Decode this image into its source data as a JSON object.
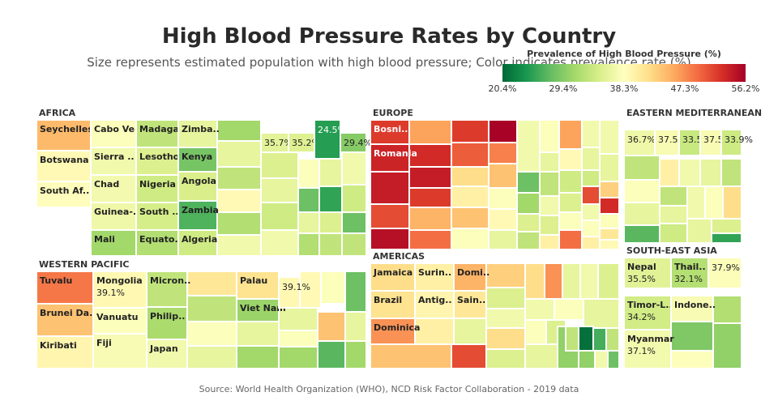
{
  "title": "High Blood Pressure Rates by Country",
  "subtitle": "Size represents estimated population with high blood pressure; Color indicates prevalence rate (%)",
  "source": "Source: World Health Organization (WHO), NCD Risk Factor Collaboration - 2019 data",
  "colorbar": {
    "title": "Prevalence of High Blood Pressure (%)",
    "min": 20.4,
    "max": 56.2,
    "ticks": [
      "20.4%",
      "29.4%",
      "38.3%",
      "47.3%",
      "56.2%"
    ],
    "colors": [
      "#006837",
      "#1a9850",
      "#66bd63",
      "#a6d96a",
      "#d9ef8b",
      "#ffffbf",
      "#fee08b",
      "#fdae61",
      "#f46d43",
      "#d73027",
      "#a50026"
    ]
  },
  "chart_data": {
    "type": "treemap",
    "value_label": "Prevalence of High Blood Pressure (%)",
    "regions": [
      {
        "name": "AFRICA",
        "countries": [
          {
            "name": "Seychelles",
            "label": "Seychelles",
            "value": 44.6
          },
          {
            "name": "Botswana",
            "label": "Botswana",
            "value": 39.0
          },
          {
            "name": "South Africa",
            "label": "South Af..",
            "value": 38.5
          },
          {
            "name": "Cabo Verde",
            "label": "Cabo Ve..",
            "value": 38.0
          },
          {
            "name": "Sierra Leone",
            "label": "Sierra ..",
            "value": 37.0
          },
          {
            "name": "Chad",
            "label": "Chad",
            "value": 37.2
          },
          {
            "name": "Guinea-Bissau",
            "label": "Guinea-..",
            "value": 36.8
          },
          {
            "name": "Mali",
            "label": "Mali",
            "value": 31.0
          },
          {
            "name": "Madagascar",
            "label": "Madaga..",
            "value": 33.0
          },
          {
            "name": "Lesotho",
            "label": "Lesotho",
            "value": 35.0
          },
          {
            "name": "Nigeria",
            "label": "Nigeria",
            "value": 34.0
          },
          {
            "name": "South Sudan",
            "label": "South ..",
            "value": 34.5
          },
          {
            "name": "Equatorial Guinea",
            "label": "Equato..",
            "value": 32.0
          },
          {
            "name": "Zimbabwe",
            "label": "Zimba..",
            "value": 36.0
          },
          {
            "name": "Kenya",
            "label": "Kenya",
            "value": 28.5
          },
          {
            "name": "Angola",
            "label": "Angola",
            "value": 34.8
          },
          {
            "name": "Zambia",
            "label": "Zambia",
            "value": 26.5
          },
          {
            "name": "Algeria",
            "label": "Algeria",
            "value": 34.0
          },
          {
            "name": "",
            "label": "35.7%",
            "value": 35.7
          },
          {
            "name": "",
            "label": "35.2%",
            "value": 35.2
          },
          {
            "name": "",
            "label": "24.5%",
            "value": 24.5
          },
          {
            "name": "",
            "label": "29.4%",
            "value": 29.4
          }
        ]
      },
      {
        "name": "EUROPE",
        "countries": [
          {
            "name": "Bosnia and Herzegovina",
            "label": "Bosni..",
            "value": 52.0
          },
          {
            "name": "Romania",
            "label": "Romania",
            "value": 53.5
          }
        ]
      },
      {
        "name": "EASTERN MEDITERRANEAN",
        "countries": [
          {
            "name": "",
            "label": "36.7%",
            "value": 36.7
          },
          {
            "name": "",
            "label": "37.5%",
            "value": 37.5
          },
          {
            "name": "",
            "label": "33.5%",
            "value": 33.5
          },
          {
            "name": "",
            "label": "37.5%",
            "value": 37.5
          },
          {
            "name": "",
            "label": "33.9%",
            "value": 33.9
          }
        ]
      },
      {
        "name": "WESTERN PACIFIC",
        "countries": [
          {
            "name": "Tuvalu",
            "label": "Tuvalu",
            "value": 48.5
          },
          {
            "name": "Brunei Darussalam",
            "label": "Brunei Da..",
            "value": 44.0
          },
          {
            "name": "Kiribati",
            "label": "Kiribati",
            "value": 39.5
          },
          {
            "name": "Mongolia",
            "label": "Mongolia",
            "value": 39.1,
            "show_value": "39.1%"
          },
          {
            "name": "Vanuatu",
            "label": "Vanuatu",
            "value": 38.0
          },
          {
            "name": "Fiji",
            "label": "Fiji",
            "value": 37.5
          },
          {
            "name": "Micronesia",
            "label": "Micron..",
            "value": 33.0
          },
          {
            "name": "Philippines",
            "label": "Philip..",
            "value": 31.5
          },
          {
            "name": "Japan",
            "label": "Japan",
            "value": 37.0
          },
          {
            "name": "Palau",
            "label": "Palau",
            "value": 41.5
          },
          {
            "name": "Viet Nam",
            "label": "Viet Nam",
            "value": 30.5
          },
          {
            "name": "",
            "label": "39.1%",
            "value": 39.1
          }
        ]
      },
      {
        "name": "AMERICAS",
        "countries": [
          {
            "name": "Jamaica",
            "label": "Jamaica",
            "value": 42.0
          },
          {
            "name": "Brazil",
            "label": "Brazil",
            "value": 41.5
          },
          {
            "name": "Dominica",
            "label": "Dominica",
            "value": 47.0
          },
          {
            "name": "Suriname",
            "label": "Surin..",
            "value": 40.0
          },
          {
            "name": "Antigua and Barbuda",
            "label": "Antig..",
            "value": 39.5
          },
          {
            "name": "Dominican Republic",
            "label": "Domi..",
            "value": 45.0
          },
          {
            "name": "Saint Lucia",
            "label": "Sain..",
            "value": 41.0
          }
        ]
      },
      {
        "name": "SOUTH-EAST ASIA",
        "countries": [
          {
            "name": "Nepal",
            "label": "Nepal",
            "value": 35.5,
            "show_value": "35.5%"
          },
          {
            "name": "Thailand",
            "label": "Thail..",
            "value": 32.1,
            "show_value": "32.1%"
          },
          {
            "name": "",
            "label": "37.9%",
            "value": 37.9
          },
          {
            "name": "Timor-Leste",
            "label": "Timor-L..",
            "value": 34.2,
            "show_value": "34.2%"
          },
          {
            "name": "Indonesia",
            "label": "Indone..",
            "value": 37.5
          },
          {
            "name": "Myanmar",
            "label": "Myanmar",
            "value": 37.1,
            "show_value": "37.1%"
          }
        ]
      }
    ]
  }
}
